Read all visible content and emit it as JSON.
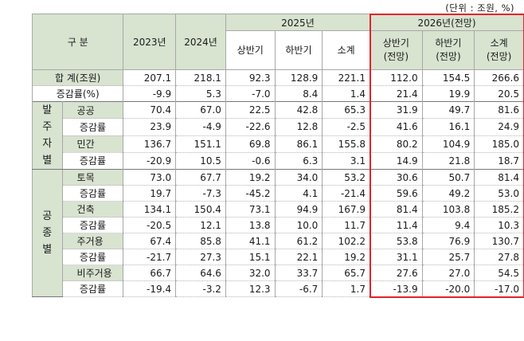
{
  "unit_note": "(단위 : 조원, %)",
  "header": {
    "col_label": "구 분",
    "y2023": "2023년",
    "y2024": "2024년",
    "y2025": "2025년",
    "y2026": "2026년(전망)",
    "h1_2025": "상반기",
    "h2_2025": "하반기",
    "sub_2025": "소계",
    "h1_2026_a": "상반기",
    "h1_2026_b": "(전망)",
    "h2_2026_a": "하반기",
    "h2_2026_b": "(전망)",
    "sub_2026_a": "소계",
    "sub_2026_b": "(전망)"
  },
  "total": {
    "label": "합 계(조원)",
    "values": [
      "207.1",
      "218.1",
      "92.3",
      "128.9",
      "221.1",
      "112.0",
      "154.5",
      "266.6"
    ],
    "rate_label": "증감률(%)",
    "rates": [
      "-9.9",
      "5.3",
      "-7.0",
      "8.4",
      "1.4",
      "21.4",
      "19.9",
      "20.5"
    ]
  },
  "by_orderer": {
    "group_label": [
      "발",
      "주",
      "자",
      "별"
    ],
    "rows": [
      {
        "label": "공공",
        "values": [
          "70.4",
          "67.0",
          "22.5",
          "42.8",
          "65.3",
          "31.9",
          "49.7",
          "81.6"
        ]
      },
      {
        "label": "증감률",
        "values": [
          "23.9",
          "-4.9",
          "-22.6",
          "12.8",
          "-2.5",
          "41.6",
          "16.1",
          "24.9"
        ]
      },
      {
        "label": "민간",
        "values": [
          "136.7",
          "151.1",
          "69.8",
          "86.1",
          "155.8",
          "80.2",
          "104.9",
          "185.0"
        ]
      },
      {
        "label": "증감률",
        "values": [
          "-20.9",
          "10.5",
          "-0.6",
          "6.3",
          "3.1",
          "14.9",
          "21.8",
          "18.7"
        ]
      }
    ]
  },
  "by_work_type": {
    "group_label": [
      "공",
      "종",
      "별"
    ],
    "rows": [
      {
        "label": "토목",
        "values": [
          "73.0",
          "67.7",
          "19.2",
          "34.0",
          "53.2",
          "30.6",
          "50.7",
          "81.4"
        ]
      },
      {
        "label": "증감률",
        "values": [
          "19.7",
          "-7.3",
          "-45.2",
          "4.1",
          "-21.4",
          "59.6",
          "49.2",
          "53.0"
        ]
      },
      {
        "label": "건축",
        "values": [
          "134.1",
          "150.4",
          "73.1",
          "94.9",
          "167.9",
          "81.4",
          "103.8",
          "185.2"
        ]
      },
      {
        "label": "증감률",
        "values": [
          "-20.5",
          "12.1",
          "13.8",
          "10.0",
          "11.7",
          "11.4",
          "9.4",
          "10.3"
        ]
      },
      {
        "label": "주거용",
        "values": [
          "67.4",
          "85.8",
          "41.1",
          "61.2",
          "102.2",
          "53.8",
          "76.9",
          "130.7"
        ]
      },
      {
        "label": "증감률",
        "values": [
          "-21.7",
          "27.3",
          "15.1",
          "22.1",
          "19.2",
          "31.1",
          "25.7",
          "27.8"
        ]
      },
      {
        "label": "비주거용",
        "values": [
          "66.7",
          "64.6",
          "32.0",
          "33.7",
          "65.7",
          "27.6",
          "27.0",
          "54.5"
        ]
      },
      {
        "label": "증감률",
        "values": [
          "-19.4",
          "-3.2",
          "12.3",
          "-6.7",
          "1.7",
          "-13.9",
          "-20.0",
          "-17.0"
        ]
      }
    ]
  },
  "accent_color": "#e2232a",
  "header_fill": "#d8e3d0"
}
